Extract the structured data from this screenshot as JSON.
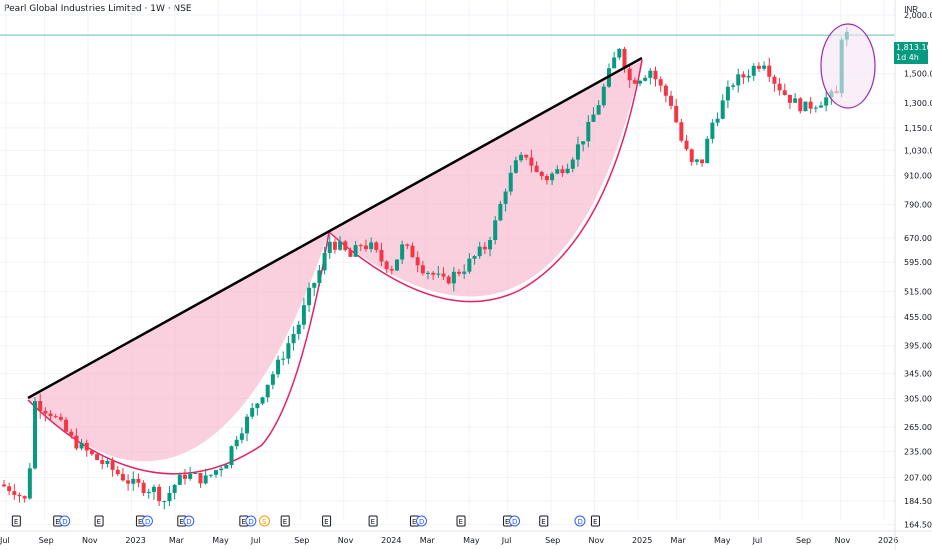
{
  "header": {
    "title": "Pearl Global Industries Limited · 1W · NSE",
    "currency": "INR"
  },
  "price_badge": {
    "price": "1,813.10",
    "countdown": "1d 4h"
  },
  "colors": {
    "up": "#089981",
    "down": "#f23645",
    "fill": "#f8bbd0",
    "curve": "#e91e63",
    "trendline": "#000000",
    "ellipse": "#9c27b0",
    "ellipse_fill": "#f3e5f5",
    "current_line": "#089981"
  },
  "chart_data": {
    "type": "candlestick",
    "title": "Pearl Global Industries Limited · 1W · NSE",
    "x_ticks": [
      "Jul",
      "Sep",
      "Nov",
      "2023",
      "Mar",
      "May",
      "Jul",
      "Sep",
      "Nov",
      "2024",
      "Mar",
      "May",
      "Jul",
      "Sep",
      "Nov",
      "2025",
      "Mar",
      "May",
      "Jul",
      "Sep",
      "Nov",
      "2026"
    ],
    "y_ticks": [
      "2,000.00",
      "1,500.00",
      "1,300.00",
      "1,150.00",
      "1,030.00",
      "910.00",
      "790.00",
      "670.00",
      "595.00",
      "515.00",
      "455.00",
      "395.00",
      "345.00",
      "305.00",
      "265.00",
      "235.00",
      "207.00",
      "184.50",
      "164.50"
    ],
    "y_scale": "log",
    "ylim": [
      160,
      2050
    ],
    "current_price": 1813.1,
    "event_markers": [
      {
        "x_index": 2,
        "labels": [
          "E"
        ]
      },
      {
        "x_index": 10,
        "labels": [
          "E",
          "D"
        ]
      },
      {
        "x_index": 18,
        "labels": [
          "E"
        ]
      },
      {
        "x_index": 26,
        "labels": [
          "E",
          "D"
        ]
      },
      {
        "x_index": 34,
        "labels": [
          "E",
          "D"
        ]
      },
      {
        "x_index": 46,
        "labels": [
          "E",
          "D"
        ]
      },
      {
        "x_index": 50,
        "labels": [
          "S"
        ]
      },
      {
        "x_index": 54,
        "labels": [
          "E"
        ]
      },
      {
        "x_index": 62,
        "labels": [
          "E"
        ]
      },
      {
        "x_index": 71,
        "labels": [
          "E"
        ]
      },
      {
        "x_index": 79,
        "labels": [
          "E",
          "D"
        ]
      },
      {
        "x_index": 88,
        "labels": [
          "E"
        ]
      },
      {
        "x_index": 97,
        "labels": [
          "E",
          "D"
        ]
      },
      {
        "x_index": 104,
        "labels": [
          "E"
        ]
      },
      {
        "x_index": 111,
        "labels": [
          "D"
        ]
      },
      {
        "x_index": 114,
        "labels": [
          "E"
        ]
      }
    ]
  }
}
